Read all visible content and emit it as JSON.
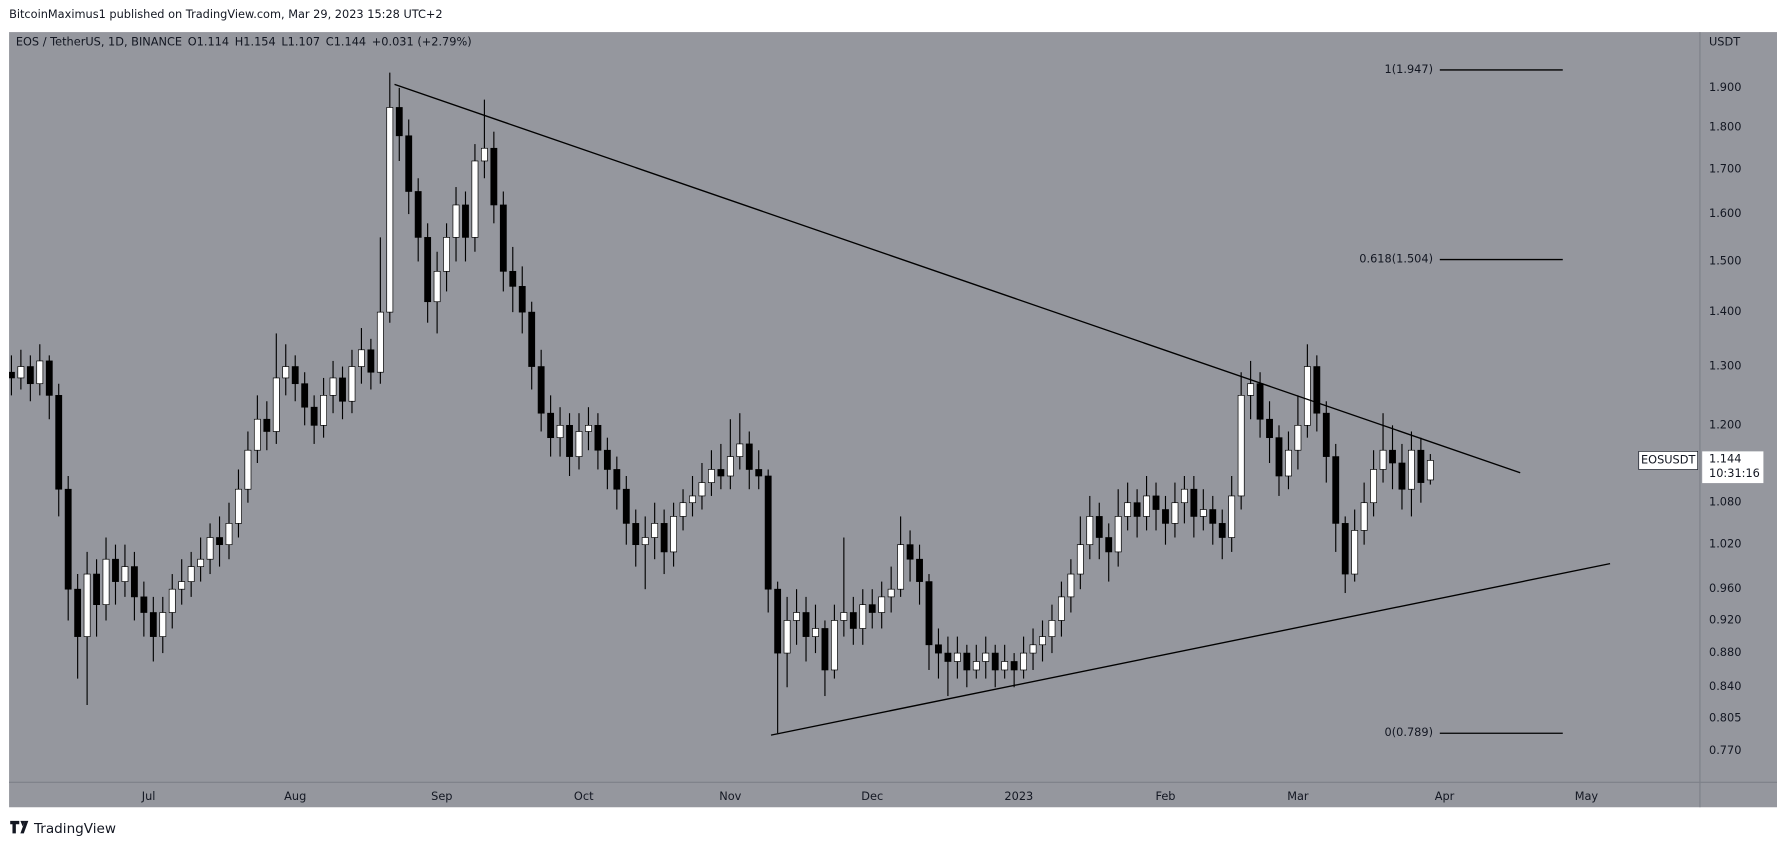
{
  "header": {
    "publisher": "BitcoinMaximus1 published on TradingView.com, Mar 29, 2023 15:28 UTC+2"
  },
  "chart_data": {
    "type": "candlestick",
    "symbol": "EOS / TetherUS, 1D, BINANCE",
    "ohlc_legend": [
      "O1.114",
      "H1.154",
      "L1.107",
      "C1.144",
      "+0.031 (+2.79%)"
    ],
    "y_unit": "USDT",
    "price_label": "EOSUSDT",
    "countdown": "10:31:16",
    "log_scale": true,
    "up_color": "#ffffff",
    "down_color": "#000000",
    "x": [
      0,
      2,
      4,
      6,
      8,
      10,
      12,
      14,
      16,
      18,
      20,
      22,
      24,
      26,
      28,
      30,
      32,
      34,
      36,
      38,
      40,
      42,
      44,
      46,
      48,
      50,
      52,
      54,
      56,
      58,
      60,
      62,
      64,
      66,
      68,
      70,
      72,
      74,
      76,
      78,
      80,
      82,
      84,
      86,
      88,
      90,
      92,
      94,
      96,
      98,
      100,
      102,
      104,
      106,
      108,
      110,
      112,
      114,
      116,
      118,
      120,
      122,
      124,
      126,
      128,
      130,
      132,
      134,
      136,
      138,
      140,
      142,
      144,
      146,
      148,
      150,
      152,
      154,
      156,
      158,
      160,
      162,
      164,
      166,
      168,
      170,
      172,
      174,
      176,
      178,
      180,
      182,
      184,
      186,
      188,
      190,
      192,
      194,
      196,
      198,
      200,
      202,
      204,
      206,
      208,
      210,
      212,
      214,
      216,
      218,
      220,
      222,
      224,
      226,
      228,
      230,
      232,
      234,
      236,
      238,
      240,
      242,
      244,
      246,
      248,
      250,
      252,
      254,
      256,
      258,
      260,
      262,
      264,
      266,
      268,
      270,
      272,
      274,
      276,
      278,
      280,
      282,
      284,
      286,
      288,
      290,
      292,
      294,
      296,
      298,
      300
    ],
    "open": [
      1.29,
      1.28,
      1.3,
      1.27,
      1.31,
      1.25,
      1.1,
      0.96,
      0.9,
      0.98,
      0.94,
      1.0,
      0.97,
      0.99,
      0.95,
      0.93,
      0.9,
      0.93,
      0.96,
      0.97,
      0.99,
      1.0,
      1.03,
      1.02,
      1.05,
      1.1,
      1.16,
      1.21,
      1.19,
      1.28,
      1.3,
      1.27,
      1.23,
      1.2,
      1.25,
      1.28,
      1.24,
      1.3,
      1.33,
      1.29,
      1.4,
      1.85,
      1.78,
      1.65,
      1.55,
      1.42,
      1.48,
      1.55,
      1.62,
      1.55,
      1.72,
      1.75,
      1.62,
      1.48,
      1.45,
      1.4,
      1.3,
      1.22,
      1.18,
      1.2,
      1.15,
      1.19,
      1.2,
      1.16,
      1.13,
      1.1,
      1.05,
      1.02,
      1.03,
      1.05,
      1.01,
      1.06,
      1.08,
      1.09,
      1.11,
      1.13,
      1.12,
      1.15,
      1.17,
      1.13,
      1.12,
      0.96,
      0.88,
      0.92,
      0.93,
      0.9,
      0.91,
      0.86,
      0.92,
      0.93,
      0.91,
      0.94,
      0.93,
      0.95,
      0.96,
      1.02,
      1.0,
      0.97,
      0.89,
      0.88,
      0.87,
      0.88,
      0.86,
      0.87,
      0.88,
      0.86,
      0.87,
      0.86,
      0.88,
      0.89,
      0.9,
      0.92,
      0.95,
      0.98,
      1.02,
      1.06,
      1.03,
      1.01,
      1.06,
      1.08,
      1.06,
      1.09,
      1.07,
      1.05,
      1.08,
      1.1,
      1.06,
      1.07,
      1.05,
      1.03,
      1.09,
      1.25,
      1.27,
      1.21,
      1.18,
      1.12,
      1.16,
      1.2,
      1.3,
      1.22,
      1.15,
      1.05,
      0.98,
      1.04,
      1.08,
      1.13,
      1.16,
      1.14,
      1.1,
      1.16,
      1.114
    ],
    "high": [
      1.32,
      1.33,
      1.32,
      1.34,
      1.32,
      1.27,
      1.12,
      0.98,
      1.01,
      1.0,
      1.03,
      1.02,
      1.02,
      1.01,
      0.97,
      0.95,
      0.95,
      0.98,
      1.0,
      1.01,
      1.03,
      1.05,
      1.06,
      1.08,
      1.13,
      1.19,
      1.25,
      1.24,
      1.36,
      1.34,
      1.32,
      1.29,
      1.25,
      1.28,
      1.31,
      1.3,
      1.33,
      1.37,
      1.35,
      1.55,
      1.94,
      1.9,
      1.82,
      1.68,
      1.58,
      1.52,
      1.58,
      1.66,
      1.65,
      1.76,
      1.87,
      1.79,
      1.65,
      1.53,
      1.49,
      1.42,
      1.33,
      1.25,
      1.23,
      1.22,
      1.22,
      1.23,
      1.22,
      1.18,
      1.15,
      1.12,
      1.07,
      1.06,
      1.08,
      1.07,
      1.08,
      1.1,
      1.12,
      1.14,
      1.16,
      1.17,
      1.21,
      1.22,
      1.19,
      1.16,
      1.13,
      0.97,
      0.95,
      0.96,
      0.95,
      0.94,
      0.92,
      0.94,
      1.03,
      0.95,
      0.96,
      0.96,
      0.97,
      0.99,
      1.06,
      1.04,
      1.02,
      0.98,
      0.91,
      0.9,
      0.9,
      0.89,
      0.89,
      0.9,
      0.89,
      0.89,
      0.88,
      0.9,
      0.91,
      0.92,
      0.94,
      0.97,
      1.0,
      1.06,
      1.09,
      1.08,
      1.05,
      1.1,
      1.11,
      1.1,
      1.12,
      1.11,
      1.09,
      1.11,
      1.12,
      1.12,
      1.1,
      1.09,
      1.07,
      1.12,
      1.29,
      1.31,
      1.29,
      1.24,
      1.2,
      1.19,
      1.25,
      1.34,
      1.32,
      1.24,
      1.17,
      1.06,
      1.07,
      1.11,
      1.16,
      1.22,
      1.2,
      1.17,
      1.19,
      1.18,
      1.154
    ],
    "low": [
      1.25,
      1.26,
      1.24,
      1.25,
      1.21,
      1.06,
      0.92,
      0.85,
      0.82,
      0.9,
      0.92,
      0.94,
      0.95,
      0.92,
      0.9,
      0.87,
      0.88,
      0.91,
      0.94,
      0.95,
      0.97,
      0.98,
      0.99,
      1.0,
      1.03,
      1.08,
      1.14,
      1.16,
      1.17,
      1.25,
      1.24,
      1.2,
      1.17,
      1.18,
      1.22,
      1.21,
      1.22,
      1.27,
      1.26,
      1.27,
      1.38,
      1.72,
      1.6,
      1.5,
      1.38,
      1.36,
      1.44,
      1.5,
      1.5,
      1.52,
      1.68,
      1.58,
      1.44,
      1.4,
      1.36,
      1.26,
      1.19,
      1.15,
      1.15,
      1.12,
      1.13,
      1.16,
      1.13,
      1.1,
      1.07,
      1.02,
      0.99,
      0.96,
      1.0,
      0.98,
      0.99,
      1.04,
      1.06,
      1.07,
      1.09,
      1.1,
      1.1,
      1.13,
      1.1,
      1.1,
      0.93,
      0.789,
      0.84,
      0.89,
      0.87,
      0.88,
      0.83,
      0.85,
      0.9,
      0.89,
      0.89,
      0.91,
      0.91,
      0.93,
      0.95,
      0.97,
      0.94,
      0.86,
      0.85,
      0.83,
      0.85,
      0.84,
      0.85,
      0.85,
      0.84,
      0.85,
      0.84,
      0.85,
      0.86,
      0.87,
      0.88,
      0.9,
      0.93,
      0.96,
      1.0,
      1.0,
      0.97,
      0.99,
      1.04,
      1.03,
      1.04,
      1.04,
      1.02,
      1.03,
      1.05,
      1.03,
      1.04,
      1.02,
      1.0,
      1.01,
      1.07,
      1.21,
      1.18,
      1.14,
      1.09,
      1.1,
      1.13,
      1.18,
      1.19,
      1.11,
      1.01,
      0.955,
      0.97,
      1.02,
      1.06,
      1.11,
      1.1,
      1.07,
      1.06,
      1.08,
      1.107
    ],
    "close": [
      1.28,
      1.3,
      1.27,
      1.31,
      1.25,
      1.1,
      0.96,
      0.9,
      0.98,
      0.94,
      1.0,
      0.97,
      0.99,
      0.95,
      0.93,
      0.9,
      0.93,
      0.96,
      0.97,
      0.99,
      1.0,
      1.03,
      1.02,
      1.05,
      1.1,
      1.16,
      1.21,
      1.19,
      1.28,
      1.3,
      1.27,
      1.23,
      1.2,
      1.25,
      1.28,
      1.24,
      1.3,
      1.33,
      1.29,
      1.4,
      1.85,
      1.78,
      1.65,
      1.55,
      1.42,
      1.48,
      1.55,
      1.62,
      1.55,
      1.72,
      1.75,
      1.62,
      1.48,
      1.45,
      1.4,
      1.3,
      1.22,
      1.18,
      1.2,
      1.15,
      1.19,
      1.2,
      1.16,
      1.13,
      1.1,
      1.05,
      1.02,
      1.03,
      1.05,
      1.01,
      1.06,
      1.08,
      1.09,
      1.11,
      1.13,
      1.12,
      1.15,
      1.17,
      1.13,
      1.12,
      0.96,
      0.88,
      0.92,
      0.93,
      0.9,
      0.91,
      0.86,
      0.92,
      0.93,
      0.91,
      0.94,
      0.93,
      0.95,
      0.96,
      1.02,
      1.0,
      0.97,
      0.89,
      0.88,
      0.87,
      0.88,
      0.86,
      0.87,
      0.88,
      0.86,
      0.87,
      0.86,
      0.88,
      0.89,
      0.9,
      0.92,
      0.95,
      0.98,
      1.02,
      1.06,
      1.03,
      1.01,
      1.06,
      1.08,
      1.06,
      1.09,
      1.07,
      1.05,
      1.08,
      1.1,
      1.06,
      1.07,
      1.05,
      1.03,
      1.09,
      1.25,
      1.27,
      1.21,
      1.18,
      1.12,
      1.16,
      1.2,
      1.3,
      1.22,
      1.15,
      1.05,
      0.98,
      1.04,
      1.08,
      1.13,
      1.16,
      1.14,
      1.1,
      1.16,
      1.11,
      1.144
    ],
    "xlim": [
      -0.5,
      357
    ],
    "xticks": [
      {
        "value": 29,
        "label": "Jul"
      },
      {
        "value": 60,
        "label": "Aug"
      },
      {
        "value": 91,
        "label": "Sep"
      },
      {
        "value": 121,
        "label": "Oct"
      },
      {
        "value": 152,
        "label": "Nov"
      },
      {
        "value": 182,
        "label": "Dec"
      },
      {
        "value": 213,
        "label": "2023"
      },
      {
        "value": 244,
        "label": "Feb"
      },
      {
        "value": 272,
        "label": "Mar"
      },
      {
        "value": 303,
        "label": "Apr"
      },
      {
        "value": 333,
        "label": "May"
      }
    ],
    "ylim": [
      0.738,
      2.05
    ],
    "yticks": [
      {
        "value": 1.9,
        "label": "1.900"
      },
      {
        "value": 1.8,
        "label": "1.800"
      },
      {
        "value": 1.7,
        "label": "1.700"
      },
      {
        "value": 1.6,
        "label": "1.600"
      },
      {
        "value": 1.5,
        "label": "1.500"
      },
      {
        "value": 1.4,
        "label": "1.400"
      },
      {
        "value": 1.3,
        "label": "1.300"
      },
      {
        "value": 1.2,
        "label": "1.200"
      },
      {
        "value": 1.08,
        "label": "1.080"
      },
      {
        "value": 1.02,
        "label": "1.020"
      },
      {
        "value": 0.96,
        "label": "0.960"
      },
      {
        "value": 0.92,
        "label": "0.920"
      },
      {
        "value": 0.88,
        "label": "0.880"
      },
      {
        "value": 0.84,
        "label": "0.840"
      },
      {
        "value": 0.805,
        "label": "0.805"
      },
      {
        "value": 0.77,
        "label": "0.770"
      }
    ],
    "trendlines": [
      {
        "x": [
          81,
          319
        ],
        "y": [
          1.909,
          1.125
        ]
      },
      {
        "x": [
          160.6,
          338
        ],
        "y": [
          0.787,
          0.994
        ]
      }
    ],
    "fib_levels": [
      {
        "label": "1(1.947)",
        "value": 1.947
      },
      {
        "label": "0.618(1.504)",
        "value": 1.504
      },
      {
        "label": "0(0.789)",
        "value": 0.789
      }
    ],
    "fib_x": [
      302,
      328
    ]
  },
  "footer": {
    "brand": "TradingView"
  }
}
